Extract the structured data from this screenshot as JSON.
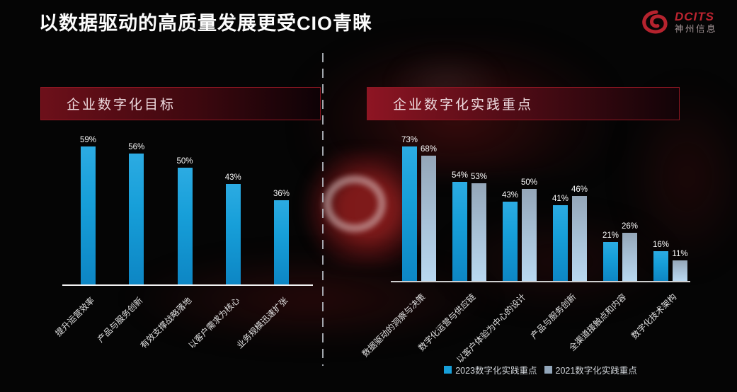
{
  "title": "以数据驱动的高质量发展更受CIO青睐",
  "logo": {
    "brand": "DCITS",
    "company": "神州信息",
    "color": "#bd2430"
  },
  "colors": {
    "bar_2023": "#179fd9",
    "bar_2021": "#92a6ba",
    "band_red": "#8e1523",
    "background": "#050505"
  },
  "chart_data": [
    {
      "type": "bar",
      "title": "企业数字化目标",
      "categories": [
        "提升运营效率",
        "产品与服务创新",
        "有效支撑战略落地",
        "以客户需求为核心",
        "业务规模迅速扩张"
      ],
      "values": [
        59,
        56,
        50,
        43,
        36
      ],
      "value_labels": [
        "59%",
        "56%",
        "50%",
        "43%",
        "36%"
      ],
      "unit": "%",
      "bar_color": "#179fd9",
      "ylim": [
        0,
        65
      ],
      "grid": false,
      "category_label_rotation": -45,
      "legend_position": "none"
    },
    {
      "type": "bar",
      "title": "企业数字化实践重点",
      "categories": [
        "数据驱动的洞察与决策",
        "数字化运营与供应链",
        "以客户体验为中心的设计",
        "产品与服务创新",
        "全渠道接触点和内容",
        "数字化技术架构"
      ],
      "series": [
        {
          "name": "2023数字化实践重点",
          "values": [
            73,
            54,
            43,
            41,
            21,
            16
          ],
          "color": "#179fd9"
        },
        {
          "name": "2021数字化实践重点",
          "values": [
            68,
            53,
            50,
            46,
            26,
            11
          ],
          "color": "#92a6ba"
        }
      ],
      "unit": "%",
      "ylim": [
        0,
        78
      ],
      "grid": false,
      "category_label_rotation": -45,
      "legend_position": "bottom"
    }
  ]
}
